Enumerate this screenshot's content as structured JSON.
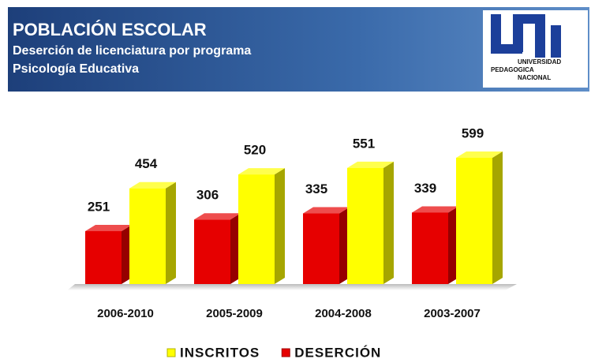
{
  "header": {
    "title": "POBLACIÓN  ESCOLAR",
    "subtitle": "Deserción de licenciatura por programa",
    "program": "Psicología Educativa",
    "logo_lines": [
      "UNIVERSIDAD",
      "PEDAGOGICA",
      "NACIONAL"
    ]
  },
  "chart_data": {
    "type": "bar3d",
    "categories": [
      "2006-2010",
      "2005-2009",
      "2004-2008",
      "2003-2007"
    ],
    "series": [
      {
        "name": "INSCRITOS",
        "color": "#ffff00",
        "values": [
          454,
          520,
          551,
          599
        ]
      },
      {
        "name": "DESERCIÓN",
        "color": "#e60000",
        "values": [
          251,
          306,
          335,
          339
        ]
      }
    ]
  }
}
